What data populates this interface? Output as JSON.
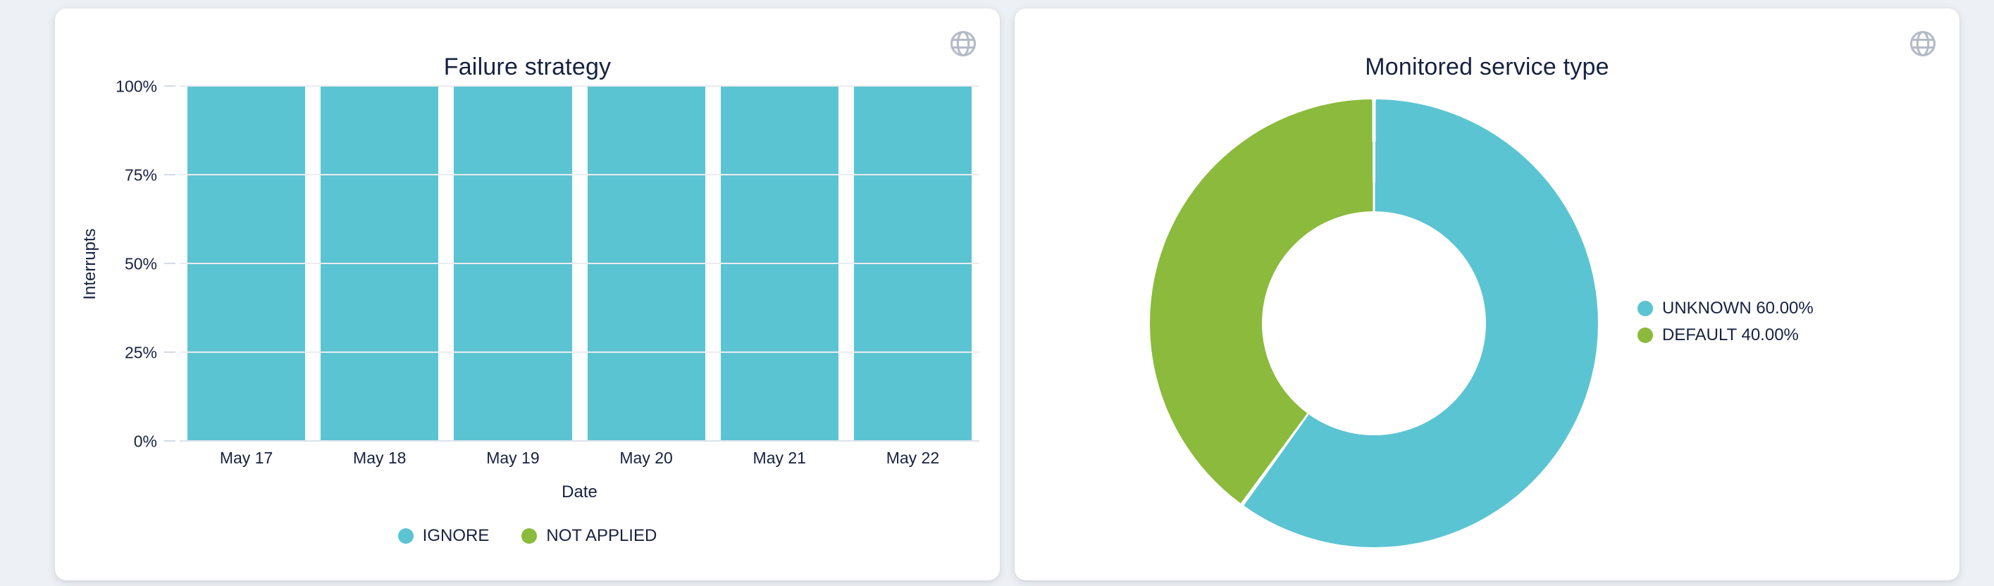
{
  "colors": {
    "page_bg": "#edf0f4",
    "card_bg": "#ffffff",
    "text": "#172240",
    "teal": "#5bc4d2",
    "green": "#8bba3c",
    "grid": "#ebecef",
    "axis_line": "#dde3ed",
    "icon_gray": "#b4bbc7"
  },
  "cards": [
    {
      "action_icon": "globe-icon"
    },
    {
      "action_icon": "globe-icon"
    }
  ],
  "chart_data": [
    {
      "type": "bar",
      "title": "Failure strategy",
      "xlabel": "Date",
      "ylabel": "Interrupts",
      "stacked": true,
      "grid": true,
      "legend_position": "bottom",
      "ylim": [
        0,
        100
      ],
      "unit": "%",
      "yticks": [
        {
          "label": "0%",
          "value": 0
        },
        {
          "label": "25%",
          "value": 25
        },
        {
          "label": "50%",
          "value": 50
        },
        {
          "label": "75%",
          "value": 75
        },
        {
          "label": "100%",
          "value": 100
        }
      ],
      "categories": [
        "May 17",
        "May 18",
        "May 19",
        "May 20",
        "May 21",
        "May 22"
      ],
      "series": [
        {
          "name": "IGNORE",
          "color": "#5bc4d2",
          "values": [
            100,
            100,
            100,
            100,
            100,
            100
          ]
        },
        {
          "name": "NOT APPLIED",
          "color": "#8bba3c",
          "values": [
            0,
            0,
            0,
            0,
            0,
            0
          ]
        }
      ]
    },
    {
      "type": "pie",
      "subtype": "donut",
      "title": "Monitored service type",
      "legend_position": "right",
      "inner_radius_ratio": 0.5,
      "start_angle_deg_from_top": 0,
      "direction": "clockwise",
      "slices": [
        {
          "name": "UNKNOWN",
          "value": 60.0,
          "label": "UNKNOWN 60.00%",
          "color": "#5bc4d2"
        },
        {
          "name": "DEFAULT",
          "value": 40.0,
          "label": "DEFAULT 40.00%",
          "color": "#8bba3c"
        }
      ]
    }
  ]
}
